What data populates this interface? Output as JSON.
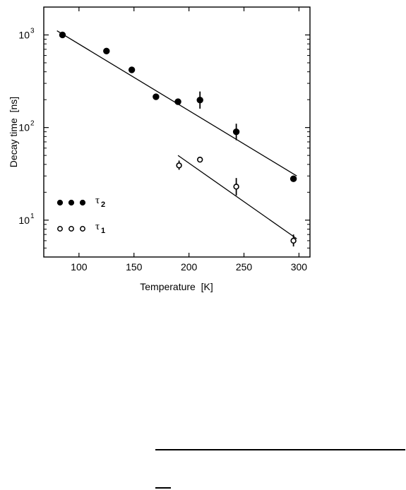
{
  "chart_data": {
    "type": "scatter",
    "xlabel": "Temperature  [K]",
    "ylabel": "Decay time  [ns]",
    "xlim": [
      68,
      310
    ],
    "ylim": [
      4,
      2000
    ],
    "yscale": "log",
    "grid": false,
    "legend_position": "bottom-left",
    "xticks": [
      100,
      150,
      200,
      250,
      300
    ],
    "xtick_labels": [
      "100",
      "150",
      "200",
      "250",
      "300"
    ],
    "yticks": [
      10,
      100,
      1000
    ],
    "ytick_labels": [
      {
        "base": "10",
        "exp": "1"
      },
      {
        "base": "10",
        "exp": "2"
      },
      {
        "base": "10",
        "exp": "3"
      }
    ],
    "series": [
      {
        "name": "τ2",
        "marker": "filled-circle",
        "points": [
          {
            "x": 85,
            "y": 1000
          },
          {
            "x": 125,
            "y": 670
          },
          {
            "x": 148,
            "y": 420
          },
          {
            "x": 170,
            "y": 215
          },
          {
            "x": 190,
            "y": 190,
            "err_lo": 178,
            "err_hi": 205
          },
          {
            "x": 210,
            "y": 198,
            "err_lo": 160,
            "err_hi": 245
          },
          {
            "x": 243,
            "y": 90,
            "err_lo": 73,
            "err_hi": 110
          },
          {
            "x": 295,
            "y": 28
          }
        ],
        "fit": {
          "x": [
            80,
            298
          ],
          "y": [
            1110,
            30
          ]
        }
      },
      {
        "name": "τ1",
        "marker": "open-circle",
        "points": [
          {
            "x": 191,
            "y": 39,
            "err_lo": 35,
            "err_hi": 44
          },
          {
            "x": 210,
            "y": 45
          },
          {
            "x": 243,
            "y": 23,
            "err_lo": 18.5,
            "err_hi": 28.5
          },
          {
            "x": 295,
            "y": 6.0,
            "err_lo": 5.2,
            "err_hi": 7.0
          }
        ],
        "fit": {
          "x": [
            190,
            298
          ],
          "y": [
            50,
            6.3
          ]
        }
      }
    ],
    "legend": [
      {
        "label_base": "τ",
        "label_sub": "2",
        "marker": "filled-circle"
      },
      {
        "label_base": "τ",
        "label_sub": "1",
        "marker": "open-circle"
      }
    ]
  }
}
